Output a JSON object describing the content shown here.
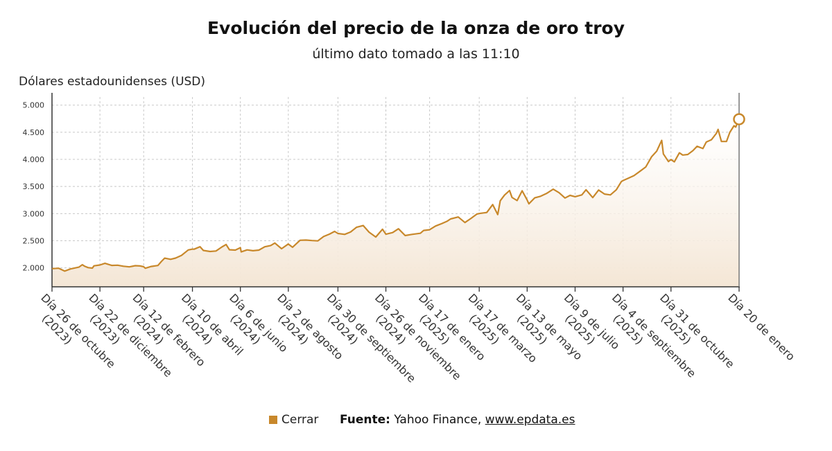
{
  "title": "Evolución del precio de la onza de oro troy",
  "subtitle": "último dato tomado a las 11:10",
  "legend": {
    "label": "Cerrar",
    "color": "#c8882b"
  },
  "source": {
    "label": "Fuente:",
    "text": "Yahoo Finance,",
    "link": "www.epdata.es"
  },
  "chart_data": {
    "type": "area",
    "ylabel": "Dólares estadounidenses (USD)",
    "ylim": [
      1650,
      5150
    ],
    "yticks": [
      "5.000",
      "4.500",
      "4.000",
      "3.500",
      "3.000",
      "2.500",
      "2.000"
    ],
    "ytick_values": [
      5000,
      4500,
      4000,
      3500,
      3000,
      2500,
      2000
    ],
    "xlim": [
      "2023-10-26",
      "2026-01-20"
    ],
    "xticks": [
      {
        "date": "2023-10-26",
        "label": [
          "Día 26 de octubre",
          "(2023)"
        ]
      },
      {
        "date": "2023-12-22",
        "label": [
          "Día 22 de diciembre",
          "(2023)"
        ]
      },
      {
        "date": "2024-02-12",
        "label": [
          "Día 12 de febrero",
          "(2024)"
        ]
      },
      {
        "date": "2024-04-10",
        "label": [
          "Día 10 de abril",
          "(2024)"
        ]
      },
      {
        "date": "2024-06-06",
        "label": [
          "Día 6 de junio",
          "(2024)"
        ]
      },
      {
        "date": "2024-08-02",
        "label": [
          "Día 2 de agosto",
          "(2024)"
        ]
      },
      {
        "date": "2024-09-30",
        "label": [
          "Día 30 de septiembre",
          "(2024)"
        ]
      },
      {
        "date": "2024-11-26",
        "label": [
          "Día 26 de noviembre",
          "(2024)"
        ]
      },
      {
        "date": "2025-01-17",
        "label": [
          "Día 17 de enero",
          "(2025)"
        ]
      },
      {
        "date": "2025-03-17",
        "label": [
          "Día 17 de marzo",
          "(2025)"
        ]
      },
      {
        "date": "2025-05-13",
        "label": [
          "Día 13 de mayo",
          "(2025)"
        ]
      },
      {
        "date": "2025-07-09",
        "label": [
          "Día 9 de julio",
          "(2025)"
        ]
      },
      {
        "date": "2025-09-04",
        "label": [
          "Día 4 de septiembre",
          "(2025)"
        ]
      },
      {
        "date": "2025-10-31",
        "label": [
          "Día 31 de octubre",
          "(2025)"
        ]
      },
      {
        "date": "2026-01-20",
        "label": [
          "Día 20 de enero"
        ]
      }
    ],
    "grid": true,
    "series": [
      {
        "name": "Cerrar",
        "color": "#c8882b",
        "points": [
          [
            "2023-10-26",
            1985
          ],
          [
            "2023-11-03",
            1992
          ],
          [
            "2023-11-10",
            1940
          ],
          [
            "2023-11-17",
            1980
          ],
          [
            "2023-11-27",
            2013
          ],
          [
            "2023-12-01",
            2057
          ],
          [
            "2023-12-04",
            2028
          ],
          [
            "2023-12-08",
            2004
          ],
          [
            "2023-12-13",
            1995
          ],
          [
            "2023-12-15",
            2037
          ],
          [
            "2023-12-22",
            2053
          ],
          [
            "2023-12-28",
            2083
          ],
          [
            "2024-01-05",
            2045
          ],
          [
            "2024-01-12",
            2049
          ],
          [
            "2024-01-19",
            2029
          ],
          [
            "2024-01-26",
            2018
          ],
          [
            "2024-02-02",
            2039
          ],
          [
            "2024-02-08",
            2034
          ],
          [
            "2024-02-12",
            2020
          ],
          [
            "2024-02-14",
            1992
          ],
          [
            "2024-02-21",
            2025
          ],
          [
            "2024-02-29",
            2044
          ],
          [
            "2024-03-04",
            2116
          ],
          [
            "2024-03-08",
            2179
          ],
          [
            "2024-03-15",
            2157
          ],
          [
            "2024-03-21",
            2180
          ],
          [
            "2024-03-28",
            2230
          ],
          [
            "2024-04-05",
            2330
          ],
          [
            "2024-04-10",
            2345
          ],
          [
            "2024-04-12",
            2344
          ],
          [
            "2024-04-19",
            2390
          ],
          [
            "2024-04-23",
            2320
          ],
          [
            "2024-05-01",
            2302
          ],
          [
            "2024-05-08",
            2310
          ],
          [
            "2024-05-15",
            2385
          ],
          [
            "2024-05-20",
            2430
          ],
          [
            "2024-05-24",
            2334
          ],
          [
            "2024-05-31",
            2327
          ],
          [
            "2024-06-06",
            2372
          ],
          [
            "2024-06-07",
            2294
          ],
          [
            "2024-06-14",
            2331
          ],
          [
            "2024-06-21",
            2316
          ],
          [
            "2024-06-28",
            2327
          ],
          [
            "2024-07-05",
            2388
          ],
          [
            "2024-07-12",
            2411
          ],
          [
            "2024-07-17",
            2457
          ],
          [
            "2024-07-25",
            2353
          ],
          [
            "2024-08-02",
            2439
          ],
          [
            "2024-08-07",
            2380
          ],
          [
            "2024-08-16",
            2508
          ],
          [
            "2024-08-23",
            2512
          ],
          [
            "2024-08-30",
            2503
          ],
          [
            "2024-09-06",
            2497
          ],
          [
            "2024-09-13",
            2577
          ],
          [
            "2024-09-20",
            2622
          ],
          [
            "2024-09-26",
            2672
          ],
          [
            "2024-09-30",
            2634
          ],
          [
            "2024-10-08",
            2617
          ],
          [
            "2024-10-15",
            2661
          ],
          [
            "2024-10-22",
            2747
          ],
          [
            "2024-10-30",
            2781
          ],
          [
            "2024-11-06",
            2658
          ],
          [
            "2024-11-14",
            2568
          ],
          [
            "2024-11-22",
            2712
          ],
          [
            "2024-11-26",
            2620
          ],
          [
            "2024-12-04",
            2650
          ],
          [
            "2024-12-11",
            2720
          ],
          [
            "2024-12-19",
            2595
          ],
          [
            "2024-12-27",
            2617
          ],
          [
            "2025-01-06",
            2637
          ],
          [
            "2025-01-10",
            2690
          ],
          [
            "2025-01-17",
            2702
          ],
          [
            "2025-01-24",
            2770
          ],
          [
            "2025-01-31",
            2812
          ],
          [
            "2025-02-07",
            2861
          ],
          [
            "2025-02-11",
            2902
          ],
          [
            "2025-02-20",
            2938
          ],
          [
            "2025-02-28",
            2836
          ],
          [
            "2025-03-07",
            2910
          ],
          [
            "2025-03-14",
            2990
          ],
          [
            "2025-03-17",
            3001
          ],
          [
            "2025-03-26",
            3020
          ],
          [
            "2025-04-02",
            3166
          ],
          [
            "2025-04-08",
            2982
          ],
          [
            "2025-04-11",
            3237
          ],
          [
            "2025-04-16",
            3340
          ],
          [
            "2025-04-22",
            3425
          ],
          [
            "2025-04-25",
            3298
          ],
          [
            "2025-05-01",
            3240
          ],
          [
            "2025-05-07",
            3420
          ],
          [
            "2025-05-13",
            3251
          ],
          [
            "2025-05-15",
            3180
          ],
          [
            "2025-05-22",
            3290
          ],
          [
            "2025-05-29",
            3320
          ],
          [
            "2025-06-05",
            3370
          ],
          [
            "2025-06-13",
            3450
          ],
          [
            "2025-06-20",
            3385
          ],
          [
            "2025-06-27",
            3287
          ],
          [
            "2025-07-03",
            3336
          ],
          [
            "2025-07-09",
            3312
          ],
          [
            "2025-07-17",
            3345
          ],
          [
            "2025-07-22",
            3440
          ],
          [
            "2025-07-30",
            3295
          ],
          [
            "2025-08-06",
            3434
          ],
          [
            "2025-08-13",
            3360
          ],
          [
            "2025-08-20",
            3345
          ],
          [
            "2025-08-27",
            3440
          ],
          [
            "2025-09-02",
            3590
          ],
          [
            "2025-09-04",
            3610
          ],
          [
            "2025-09-10",
            3650
          ],
          [
            "2025-09-17",
            3700
          ],
          [
            "2025-09-24",
            3780
          ],
          [
            "2025-10-01",
            3860
          ],
          [
            "2025-10-08",
            4050
          ],
          [
            "2025-10-14",
            4150
          ],
          [
            "2025-10-20",
            4350
          ],
          [
            "2025-10-22",
            4100
          ],
          [
            "2025-10-28",
            3960
          ],
          [
            "2025-10-31",
            3996
          ],
          [
            "2025-11-04",
            3955
          ],
          [
            "2025-11-10",
            4120
          ],
          [
            "2025-11-14",
            4080
          ],
          [
            "2025-11-20",
            4090
          ],
          [
            "2025-11-26",
            4160
          ],
          [
            "2025-12-01",
            4240
          ],
          [
            "2025-12-08",
            4200
          ],
          [
            "2025-12-12",
            4320
          ],
          [
            "2025-12-18",
            4360
          ],
          [
            "2025-12-24",
            4480
          ],
          [
            "2025-12-26",
            4552
          ],
          [
            "2025-12-30",
            4330
          ],
          [
            "2026-01-05",
            4330
          ],
          [
            "2026-01-09",
            4500
          ],
          [
            "2026-01-14",
            4620
          ],
          [
            "2026-01-16",
            4595
          ],
          [
            "2026-01-20",
            4740
          ]
        ]
      }
    ]
  }
}
